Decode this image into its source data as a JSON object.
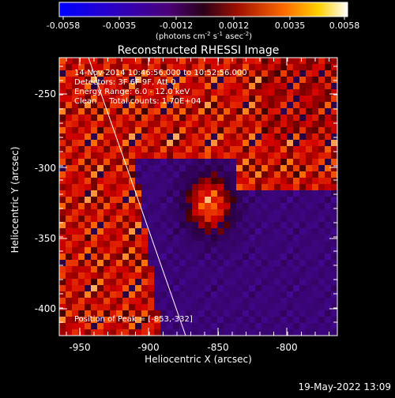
{
  "colorbar": {
    "tick_labels": [
      "-0.0058",
      "-0.0035",
      "-0.0012",
      "0.0012",
      "0.0035",
      "0.0058"
    ],
    "units_label": "(photons cm",
    "units_exp1": "-2",
    "units_mid": " s",
    "units_exp2": "-1",
    "units_mid2": " asec",
    "units_exp3": "-2",
    "units_end": ")"
  },
  "image": {
    "title": "Reconstructed RHESSI Image",
    "info_lines": [
      "14-Nov-2014 10:46:56.000 to 10:52:56.000",
      "Detectors: 3F 6F 9F, Att 0",
      "Energy Range: 6.0 - 12.0 keV",
      "Clean     Total counts: 1.70E+04"
    ],
    "peak_label": "Position of Peak = [-853,-332]",
    "xlabel": "Heliocentric X (arcsec)",
    "ylabel": "Heliocentric Y (arcsec)",
    "x_ticks": [
      "-950",
      "-900",
      "-850",
      "-800"
    ],
    "y_ticks": [
      "-250",
      "-300",
      "-350",
      "-400"
    ],
    "peak_x": -853,
    "peak_y": -332
  },
  "footer": {
    "date": "19-May-2022 13:09"
  }
}
